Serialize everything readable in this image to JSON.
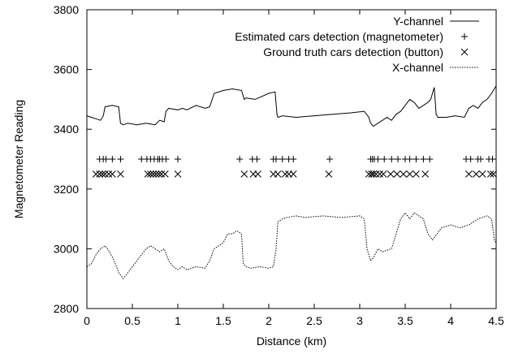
{
  "chart_data": {
    "type": "line",
    "title": "",
    "xlabel": "Distance (km)",
    "ylabel": "Magnetometer Reading",
    "xlim": [
      0,
      4.5
    ],
    "ylim": [
      2800,
      3800
    ],
    "xticks": [
      0,
      0.5,
      1,
      1.5,
      2,
      2.5,
      3,
      3.5,
      4,
      4.5
    ],
    "yticks": [
      2800,
      3000,
      3200,
      3400,
      3600,
      3800
    ],
    "grid": false,
    "legend_position": "top-right",
    "series": [
      {
        "name": "Y-channel",
        "kind": "line",
        "style": "solid",
        "color": "#000000",
        "x": [
          0.0,
          0.05,
          0.1,
          0.15,
          0.18,
          0.2,
          0.28,
          0.35,
          0.37,
          0.4,
          0.45,
          0.55,
          0.65,
          0.75,
          0.8,
          0.85,
          0.87,
          0.9,
          1.0,
          1.05,
          1.1,
          1.2,
          1.3,
          1.35,
          1.4,
          1.5,
          1.6,
          1.7,
          1.73,
          1.75,
          1.85,
          2.0,
          2.07,
          2.09,
          2.1,
          2.15,
          2.3,
          2.5,
          2.7,
          2.9,
          3.05,
          3.1,
          3.12,
          3.15,
          3.2,
          3.25,
          3.3,
          3.35,
          3.4,
          3.45,
          3.5,
          3.55,
          3.6,
          3.65,
          3.7,
          3.75,
          3.78,
          3.82,
          3.84,
          3.86,
          3.95,
          4.05,
          4.15,
          4.2,
          4.25,
          4.3,
          4.35,
          4.4,
          4.45,
          4.5
        ],
        "y": [
          3445,
          3440,
          3435,
          3430,
          3445,
          3475,
          3480,
          3475,
          3420,
          3415,
          3420,
          3415,
          3420,
          3415,
          3430,
          3425,
          3460,
          3470,
          3465,
          3470,
          3465,
          3480,
          3470,
          3475,
          3520,
          3530,
          3535,
          3530,
          3500,
          3505,
          3500,
          3520,
          3525,
          3450,
          3440,
          3445,
          3440,
          3445,
          3450,
          3455,
          3460,
          3440,
          3420,
          3410,
          3420,
          3430,
          3440,
          3430,
          3450,
          3460,
          3480,
          3500,
          3490,
          3470,
          3480,
          3490,
          3500,
          3540,
          3450,
          3440,
          3440,
          3445,
          3440,
          3470,
          3480,
          3470,
          3490,
          3500,
          3520,
          3545
        ]
      },
      {
        "name": "Estimated cars detection (magnetometer)",
        "kind": "marker",
        "marker": "+",
        "y_level": 3300,
        "x": [
          0.14,
          0.18,
          0.21,
          0.28,
          0.37,
          0.6,
          0.66,
          0.7,
          0.74,
          0.78,
          0.8,
          0.83,
          0.87,
          1.0,
          1.68,
          1.82,
          1.87,
          2.05,
          2.08,
          2.15,
          2.22,
          2.27,
          2.67,
          3.12,
          3.14,
          3.16,
          3.2,
          3.27,
          3.35,
          3.42,
          3.5,
          3.55,
          3.62,
          3.7,
          3.77,
          4.17,
          4.22,
          4.3,
          4.33,
          4.42,
          4.46
        ]
      },
      {
        "name": "Ground truth cars detection (button)",
        "kind": "marker",
        "marker": "x",
        "y_level": 3250,
        "x": [
          0.1,
          0.14,
          0.17,
          0.2,
          0.24,
          0.28,
          0.37,
          0.67,
          0.7,
          0.73,
          0.76,
          0.79,
          0.82,
          0.86,
          1.0,
          1.73,
          1.83,
          1.88,
          2.05,
          2.1,
          2.18,
          2.22,
          2.27,
          2.66,
          3.1,
          3.13,
          3.15,
          3.18,
          3.22,
          3.26,
          3.34,
          3.41,
          3.48,
          3.55,
          3.62,
          3.72,
          4.2,
          4.28,
          4.35,
          4.44,
          4.47
        ]
      },
      {
        "name": "X-channel",
        "kind": "line",
        "style": "dotted",
        "color": "#000000",
        "x": [
          0.0,
          0.05,
          0.1,
          0.15,
          0.2,
          0.25,
          0.3,
          0.35,
          0.4,
          0.45,
          0.5,
          0.55,
          0.6,
          0.65,
          0.7,
          0.75,
          0.8,
          0.85,
          0.9,
          0.95,
          1.0,
          1.05,
          1.1,
          1.2,
          1.3,
          1.35,
          1.4,
          1.5,
          1.55,
          1.6,
          1.65,
          1.7,
          1.72,
          1.75,
          1.8,
          1.9,
          2.0,
          2.05,
          2.08,
          2.1,
          2.15,
          2.2,
          2.3,
          2.4,
          2.6,
          2.8,
          3.0,
          3.05,
          3.08,
          3.12,
          3.15,
          3.2,
          3.25,
          3.3,
          3.35,
          3.4,
          3.45,
          3.5,
          3.55,
          3.6,
          3.65,
          3.7,
          3.75,
          3.8,
          3.85,
          3.9,
          4.0,
          4.1,
          4.2,
          4.3,
          4.4,
          4.45,
          4.48,
          4.5
        ],
        "y": [
          2940,
          2950,
          2980,
          3000,
          3010,
          2990,
          2960,
          2920,
          2900,
          2920,
          2940,
          2960,
          2980,
          3000,
          3010,
          3000,
          2990,
          3000,
          2960,
          2940,
          2930,
          2940,
          2930,
          2940,
          2935,
          2960,
          3000,
          3020,
          3050,
          3050,
          3060,
          3050,
          2950,
          2940,
          2935,
          2940,
          2935,
          2940,
          3000,
          3090,
          3100,
          3105,
          3110,
          3105,
          3110,
          3105,
          3110,
          3100,
          3000,
          2960,
          2970,
          3000,
          2990,
          2995,
          3000,
          3050,
          3100,
          3120,
          3100,
          3120,
          3110,
          3100,
          3050,
          3030,
          3050,
          3070,
          3080,
          3070,
          3080,
          3100,
          3110,
          3100,
          3030,
          3020
        ]
      }
    ]
  }
}
